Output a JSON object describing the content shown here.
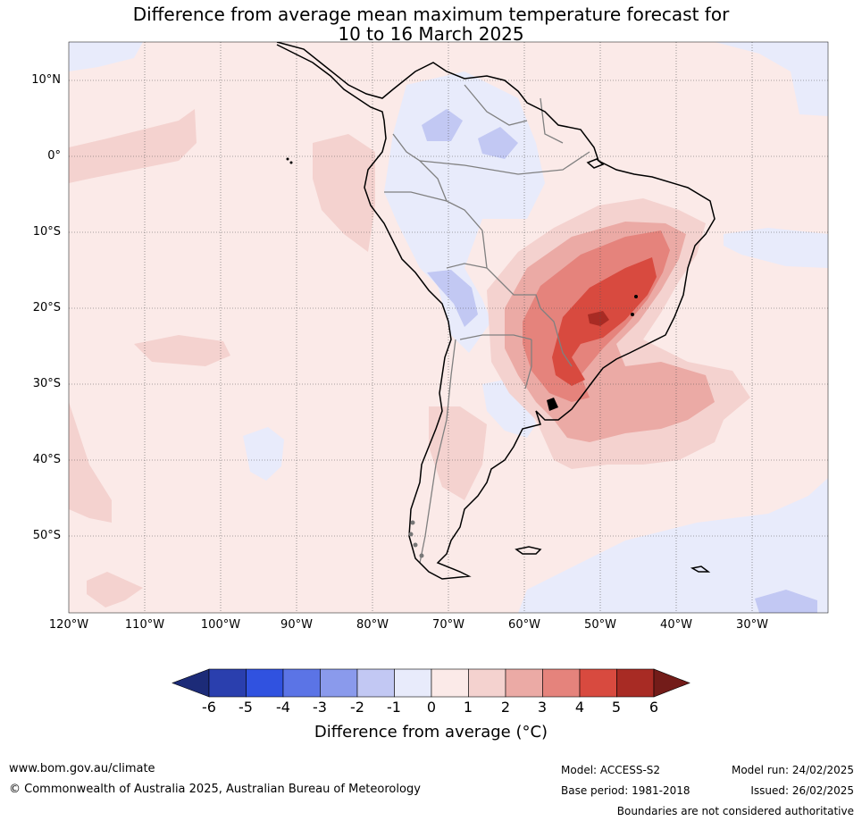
{
  "title": {
    "line1": "Difference from average mean maximum temperature forecast for",
    "line2": "10 to 16 March 2025"
  },
  "map": {
    "lat_labels": [
      "10°N",
      "0°",
      "10°S",
      "20°S",
      "30°S",
      "40°S",
      "50°S"
    ],
    "lon_labels": [
      "120°W",
      "110°W",
      "100°W",
      "90°W",
      "80°W",
      "70°W",
      "60°W",
      "50°W",
      "40°W",
      "30°W"
    ],
    "colors": {
      "neutral_pos": "#fbeae8",
      "neutral_neg": "#e8ebfb",
      "warm_1": "#f4d2cf",
      "warm_2": "#ebaaa5",
      "warm_3": "#e5837c",
      "warm_4": "#d84a3f",
      "warm_5": "#a82b24",
      "cool_1": "#c2c8f3",
      "coastline": "#000000",
      "border": "#808080"
    },
    "anomaly_field": {
      "region": "South America",
      "max_warm_anomaly_c": 5,
      "max_cool_anomaly_c": -2,
      "warm_center": "southern Brazil"
    }
  },
  "colorbar": {
    "ticks": [
      "-6",
      "-5",
      "-4",
      "-3",
      "-2",
      "-1",
      "0",
      "1",
      "2",
      "3",
      "4",
      "5",
      "6"
    ],
    "colors": [
      "#2a3fae",
      "#3052e0",
      "#5b74e6",
      "#8a9aec",
      "#c2c8f3",
      "#e8ebfb",
      "#fbeae8",
      "#f4d2cf",
      "#ebaaa5",
      "#e5837c",
      "#d84a3f",
      "#a82b24"
    ],
    "under_color": "#1c2b78",
    "over_color": "#731c19",
    "label": "Difference from average (°C)"
  },
  "footer": {
    "website": "www.bom.gov.au/climate",
    "copyright": "© Commonwealth of Australia 2025, Australian Bureau of Meteorology",
    "model": "Model: ACCESS-S2",
    "base_period": "Base period: 1981-2018",
    "model_run": "Model run: 24/02/2025",
    "issued": "Issued: 26/02/2025",
    "disclaimer": "Boundaries are not considered authoritative"
  }
}
